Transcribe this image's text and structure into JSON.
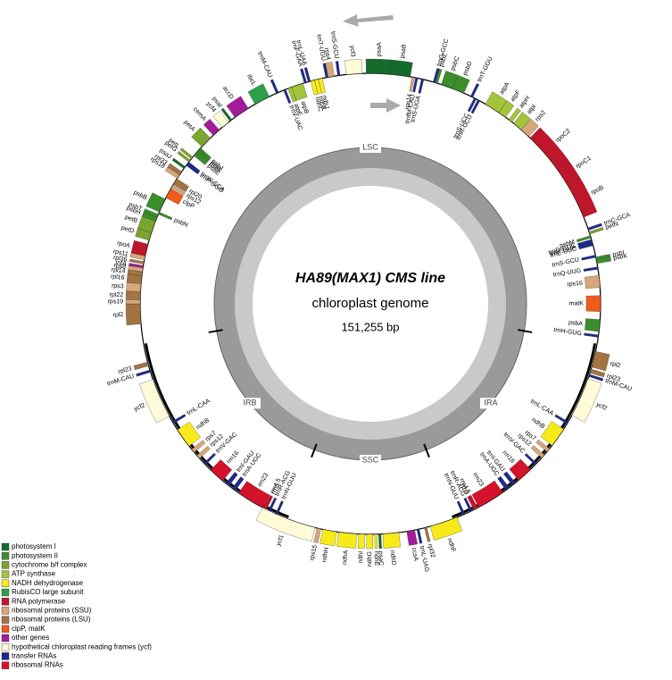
{
  "title": "HA89(MAX1) CMS line",
  "subtitle": "chloroplast genome",
  "genome_length": {
    "value": 151255,
    "label": "151,255 bp"
  },
  "regions": [
    {
      "name": "LSC",
      "start": 0,
      "end": 84030
    },
    {
      "name": "IRA",
      "start": 84030,
      "end": 108820
    },
    {
      "name": "SSC",
      "start": 108820,
      "end": 126470
    },
    {
      "name": "IRB",
      "start": 126470,
      "end": 151255
    }
  ],
  "legend": [
    {
      "label": "photosystem I",
      "color": "#156b2b"
    },
    {
      "label": "photosystem II",
      "color": "#3a8f2a"
    },
    {
      "label": "cytochrome b/f complex",
      "color": "#7ba52e"
    },
    {
      "label": "ATP synthase",
      "color": "#a4c43a"
    },
    {
      "label": "NADH dehydrogenase",
      "color": "#f7ea1a"
    },
    {
      "label": "RubisCO large subunit",
      "color": "#2aa04a"
    },
    {
      "label": "RNA polymerase",
      "color": "#c0162b"
    },
    {
      "label": "ribosomal proteins (SSU)",
      "color": "#d6a77a"
    },
    {
      "label": "ribosomal proteins (LSU)",
      "color": "#a27442"
    },
    {
      "label": "clpP, matK",
      "color": "#f05a1a"
    },
    {
      "label": "other genes",
      "color": "#a21c9a"
    },
    {
      "label": "hypothetical chloroplast reading frames (ycf)",
      "color": "#fffbd8"
    },
    {
      "label": "transfer RNAs",
      "color": "#1c2a8c"
    },
    {
      "label": "ribosomal RNAs",
      "color": "#d4122a"
    }
  ],
  "genes": [
    {
      "name": "rpl2",
      "start": 2100,
      "end": 4200,
      "strand": "-",
      "group": 8
    },
    {
      "name": "rps19",
      "start": 4200,
      "end": 4620,
      "strand": "-",
      "group": 7
    },
    {
      "name": "rpl22",
      "start": 4620,
      "end": 5460,
      "strand": "-",
      "group": 8
    },
    {
      "name": "rps3",
      "start": 5460,
      "end": 6300,
      "strand": "-",
      "group": 7
    },
    {
      "name": "rpl16",
      "start": 6300,
      "end": 7140,
      "strand": "-",
      "group": 8
    },
    {
      "name": "rpl14",
      "start": 7140,
      "end": 7560,
      "strand": "-",
      "group": 8
    },
    {
      "name": "rps8",
      "start": 7560,
      "end": 7980,
      "strand": "-",
      "group": 7
    },
    {
      "name": "infA",
      "start": 7980,
      "end": 8200,
      "strand": "-",
      "group": 10
    },
    {
      "name": "rpl36",
      "start": 8400,
      "end": 8600,
      "strand": "-",
      "group": 8
    },
    {
      "name": "rps11",
      "start": 8820,
      "end": 9240,
      "strand": "-",
      "group": 7
    },
    {
      "name": "rpoA",
      "start": 9240,
      "end": 10500,
      "strand": "-",
      "group": 6
    },
    {
      "name": "petD",
      "start": 10920,
      "end": 11760,
      "strand": "-",
      "group": 2
    },
    {
      "name": "petB",
      "start": 11760,
      "end": 13020,
      "strand": "-",
      "group": 2
    },
    {
      "name": "psbH",
      "start": 13020,
      "end": 13440,
      "strand": "-",
      "group": 1
    },
    {
      "name": "psbT",
      "start": 13440,
      "end": 13800,
      "strand": "-",
      "group": 1
    },
    {
      "name": "psbN",
      "start": 13860,
      "end": 14000,
      "strand": "+",
      "group": 1
    },
    {
      "name": "psbB",
      "start": 14070,
      "end": 15540,
      "strand": "-",
      "group": 1
    },
    {
      "name": "clpP",
      "start": 15700,
      "end": 16800,
      "strand": "+",
      "group": 9
    },
    {
      "name": "rps12",
      "start": 16900,
      "end": 17200,
      "strand": "+",
      "group": 7
    },
    {
      "name": "rpl20",
      "start": 17300,
      "end": 18000,
      "strand": "+",
      "group": 8
    },
    {
      "name": "rps18",
      "start": 18060,
      "end": 18480,
      "strand": "-",
      "group": 7
    },
    {
      "name": "rpl33",
      "start": 18480,
      "end": 18900,
      "strand": "-",
      "group": 8
    },
    {
      "name": "psaJ",
      "start": 19320,
      "end": 19500,
      "strand": "-",
      "group": 0
    },
    {
      "name": "trnP-UGG",
      "start": 19740,
      "end": 19900,
      "strand": "+",
      "group": 12
    },
    {
      "name": "trnW-CCA",
      "start": 19950,
      "end": 20100,
      "strand": "+",
      "group": 12
    },
    {
      "name": "petG",
      "start": 20160,
      "end": 20370,
      "strand": "-",
      "group": 2
    },
    {
      "name": "petL",
      "start": 20580,
      "end": 20790,
      "strand": "-",
      "group": 2
    },
    {
      "name": "psbE",
      "start": 21000,
      "end": 21420,
      "strand": "+",
      "group": 1
    },
    {
      "name": "psbF",
      "start": 21420,
      "end": 21630,
      "strand": "+",
      "group": 1
    },
    {
      "name": "psbL",
      "start": 21630,
      "end": 21840,
      "strand": "+",
      "group": 1
    },
    {
      "name": "psbJ",
      "start": 21840,
      "end": 22050,
      "strand": "+",
      "group": 1
    },
    {
      "name": "petA",
      "start": 22260,
      "end": 23520,
      "strand": "-",
      "group": 2
    },
    {
      "name": "cemA",
      "start": 23940,
      "end": 24780,
      "strand": "-",
      "group": 10
    },
    {
      "name": "ycf4",
      "start": 25200,
      "end": 26040,
      "strand": "-",
      "group": 11
    },
    {
      "name": "psaI",
      "start": 26250,
      "end": 26460,
      "strand": "-",
      "group": 0
    },
    {
      "name": "accD",
      "start": 26880,
      "end": 28560,
      "strand": "-",
      "group": 10
    },
    {
      "name": "rbcL",
      "start": 29400,
      "end": 31080,
      "strand": "-",
      "group": 5
    },
    {
      "name": "trnM-CAU",
      "start": 31920,
      "end": 32100,
      "strand": "-",
      "group": 12
    },
    {
      "name": "trnV-UAC",
      "start": 32760,
      "end": 32900,
      "strand": "+",
      "group": 12
    },
    {
      "name": "atpE",
      "start": 33180,
      "end": 33600,
      "strand": "+",
      "group": 3
    },
    {
      "name": "atpB",
      "start": 33600,
      "end": 34860,
      "strand": "+",
      "group": 3
    },
    {
      "name": "trnF-GAA",
      "start": 35070,
      "end": 35200,
      "strand": "-",
      "group": 12
    },
    {
      "name": "trnL-UAA",
      "start": 35490,
      "end": 35620,
      "strand": "-",
      "group": 12
    },
    {
      "name": "ndhC",
      "start": 35700,
      "end": 36120,
      "strand": "+",
      "group": 4
    },
    {
      "name": "ndhK",
      "start": 36120,
      "end": 36540,
      "strand": "+",
      "group": 4
    },
    {
      "name": "ndhJ",
      "start": 36540,
      "end": 36960,
      "strand": "+",
      "group": 4
    },
    {
      "name": "trnT-UGU",
      "start": 37380,
      "end": 37500,
      "strand": "-",
      "group": 12
    },
    {
      "name": "rps4",
      "start": 37590,
      "end": 38220,
      "strand": "-",
      "group": 7
    },
    {
      "name": "trnS-GCU",
      "start": 38640,
      "end": 38780,
      "strand": "-",
      "group": 12
    },
    {
      "name": "ycf3",
      "start": 39480,
      "end": 41160,
      "strand": "-",
      "group": 11
    },
    {
      "name": "psaA",
      "start": 41580,
      "end": 44100,
      "strand": "-",
      "group": 0
    },
    {
      "name": "psaB",
      "start": 44100,
      "end": 46200,
      "strand": "-",
      "group": 0
    },
    {
      "name": "rps14",
      "start": 46410,
      "end": 46620,
      "strand": "+",
      "group": 7
    },
    {
      "name": "trnfM-CAU",
      "start": 46830,
      "end": 46950,
      "strand": "+",
      "group": 12
    },
    {
      "name": "trnS-UGA",
      "start": 47460,
      "end": 47600,
      "strand": "+",
      "group": 12
    },
    {
      "name": "trnG-GCC",
      "start": 48720,
      "end": 48850,
      "strand": "-",
      "group": 12
    },
    {
      "name": "psbZ",
      "start": 48930,
      "end": 49140,
      "strand": "-",
      "group": 1
    },
    {
      "name": "psbC",
      "start": 49560,
      "end": 50820,
      "strand": "-",
      "group": 1
    },
    {
      "name": "psbD",
      "start": 50820,
      "end": 52080,
      "strand": "-",
      "group": 1
    },
    {
      "name": "trnT-GGU",
      "start": 52920,
      "end": 53050,
      "strand": "-",
      "group": 12
    },
    {
      "name": "trnS-UCC",
      "start": 53340,
      "end": 53460,
      "strand": "+",
      "group": 12
    },
    {
      "name": "trnR-UCU",
      "start": 53760,
      "end": 53880,
      "strand": "+",
      "group": 12
    },
    {
      "name": "atpA",
      "start": 54600,
      "end": 56280,
      "strand": "-",
      "group": 3
    },
    {
      "name": "atpF",
      "start": 56280,
      "end": 57120,
      "strand": "-",
      "group": 3
    },
    {
      "name": "atpH",
      "start": 57540,
      "end": 57960,
      "strand": "-",
      "group": 3
    },
    {
      "name": "atpI",
      "start": 58170,
      "end": 59220,
      "strand": "-",
      "group": 3
    },
    {
      "name": "rps2",
      "start": 59220,
      "end": 60270,
      "strand": "-",
      "group": 7
    },
    {
      "name": "rpoC2",
      "start": 60480,
      "end": 64680,
      "strand": "-",
      "group": 6
    },
    {
      "name": "rpoC1",
      "start": 64680,
      "end": 66780,
      "strand": "-",
      "group": 6
    },
    {
      "name": "rpoB",
      "start": 66780,
      "end": 70560,
      "strand": "-",
      "group": 6
    },
    {
      "name": "trnC-GCA",
      "start": 71820,
      "end": 71950,
      "strand": "-",
      "group": 12
    },
    {
      "name": "petN",
      "start": 72240,
      "end": 72370,
      "strand": "-",
      "group": 2
    },
    {
      "name": "psbM",
      "start": 72660,
      "end": 72790,
      "strand": "+",
      "group": 1
    },
    {
      "name": "trnD-GUC",
      "start": 73080,
      "end": 73200,
      "strand": "+",
      "group": 12
    },
    {
      "name": "trnY-GUA",
      "start": 73290,
      "end": 73400,
      "strand": "+",
      "group": 12
    },
    {
      "name": "trnE-UUC",
      "start": 73500,
      "end": 73620,
      "strand": "+",
      "group": 12
    },
    {
      "name": "trnS-GCU",
      "start": 74760,
      "end": 74880,
      "strand": "+",
      "group": 12
    },
    {
      "name": "psbI",
      "start": 74970,
      "end": 75100,
      "strand": "-",
      "group": 1
    },
    {
      "name": "psbK",
      "start": 75180,
      "end": 75600,
      "strand": "-",
      "group": 1
    },
    {
      "name": "trnQ-UUG",
      "start": 76020,
      "end": 76140,
      "strand": "+",
      "group": 12
    },
    {
      "name": "rps16",
      "start": 76860,
      "end": 78120,
      "strand": "+",
      "group": 7
    },
    {
      "name": "matK",
      "start": 78960,
      "end": 80640,
      "strand": "+",
      "group": 9
    },
    {
      "name": "psbA",
      "start": 81480,
      "end": 82740,
      "strand": "+",
      "group": 1
    },
    {
      "name": "trnH-GUG",
      "start": 83160,
      "end": 83280,
      "strand": "+",
      "group": 12
    },
    {
      "name": "rpl2",
      "start": 84840,
      "end": 86520,
      "strand": "-",
      "group": 8
    },
    {
      "name": "rpl23",
      "start": 86730,
      "end": 87150,
      "strand": "-",
      "group": 8
    },
    {
      "name": "trnM-CAU",
      "start": 87360,
      "end": 87500,
      "strand": "-",
      "group": 12
    },
    {
      "name": "ycf2",
      "start": 87780,
      "end": 91980,
      "strand": "-",
      "group": 11
    },
    {
      "name": "trnL-CAA",
      "start": 92820,
      "end": 92950,
      "strand": "+",
      "group": 12
    },
    {
      "name": "ndhB",
      "start": 93660,
      "end": 95760,
      "strand": "+",
      "group": 4
    },
    {
      "name": "rps7",
      "start": 96180,
      "end": 96600,
      "strand": "+",
      "group": 7
    },
    {
      "name": "rps12",
      "start": 97020,
      "end": 97440,
      "strand": "+",
      "group": 7
    },
    {
      "name": "trnV-GAC",
      "start": 98280,
      "end": 98400,
      "strand": "+",
      "group": 12
    },
    {
      "name": "rrn16",
      "start": 99120,
      "end": 100800,
      "strand": "+",
      "group": 13
    },
    {
      "name": "trnI-GAU",
      "start": 101220,
      "end": 101640,
      "strand": "+",
      "group": 12
    },
    {
      "name": "trnA-UGC",
      "start": 102060,
      "end": 102480,
      "strand": "+",
      "group": 12
    },
    {
      "name": "rrn23",
      "start": 102900,
      "end": 105840,
      "strand": "+",
      "group": 13
    },
    {
      "name": "rrn4.5",
      "start": 106050,
      "end": 106150,
      "strand": "+",
      "group": 13
    },
    {
      "name": "rrn5",
      "start": 106260,
      "end": 106350,
      "strand": "+",
      "group": 13
    },
    {
      "name": "trnR-ACG",
      "start": 106680,
      "end": 106800,
      "strand": "+",
      "group": 12
    },
    {
      "name": "trnN-GUU",
      "start": 107520,
      "end": 107650,
      "strand": "+",
      "group": 12
    },
    {
      "name": "ndhF",
      "start": 108360,
      "end": 111300,
      "strand": "-",
      "group": 4
    },
    {
      "name": "rpl32",
      "start": 111720,
      "end": 111900,
      "strand": "-",
      "group": 8
    },
    {
      "name": "trnL-UAG",
      "start": 112560,
      "end": 112680,
      "strand": "-",
      "group": 12
    },
    {
      "name": "ccsA",
      "start": 112980,
      "end": 113820,
      "strand": "-",
      "group": 10
    },
    {
      "name": "ndhD",
      "start": 114660,
      "end": 116340,
      "strand": "-",
      "group": 4
    },
    {
      "name": "psaC",
      "start": 116550,
      "end": 116760,
      "strand": "-",
      "group": 0
    },
    {
      "name": "ndhE",
      "start": 116970,
      "end": 117180,
      "strand": "-",
      "group": 4
    },
    {
      "name": "ndhG",
      "start": 117390,
      "end": 118020,
      "strand": "-",
      "group": 4
    },
    {
      "name": "ndhI",
      "start": 118230,
      "end": 118860,
      "strand": "-",
      "group": 4
    },
    {
      "name": "ndhA",
      "start": 119070,
      "end": 120960,
      "strand": "-",
      "group": 4
    },
    {
      "name": "ndhH",
      "start": 121170,
      "end": 122640,
      "strand": "-",
      "group": 4
    },
    {
      "name": "rps15",
      "start": 122850,
      "end": 123270,
      "strand": "-",
      "group": 7
    },
    {
      "name": "ycf1",
      "start": 123480,
      "end": 129360,
      "strand": "-",
      "group": 11
    },
    {
      "name": "trnN-GUU",
      "start": 127680,
      "end": 127800,
      "strand": "+",
      "group": 12
    },
    {
      "name": "trnR-ACG",
      "start": 128520,
      "end": 128640,
      "strand": "+",
      "group": 12
    },
    {
      "name": "rrn5",
      "start": 129000,
      "end": 129100,
      "strand": "+",
      "group": 13
    },
    {
      "name": "rrn4.5",
      "start": 129150,
      "end": 129250,
      "strand": "+",
      "group": 13
    },
    {
      "name": "rrn23",
      "start": 129360,
      "end": 132300,
      "strand": "+",
      "group": 13
    },
    {
      "name": "trnA-UGC",
      "start": 132720,
      "end": 133140,
      "strand": "+",
      "group": 12
    },
    {
      "name": "trnI-GAU",
      "start": 133560,
      "end": 133980,
      "strand": "+",
      "group": 12
    },
    {
      "name": "rrn16",
      "start": 134400,
      "end": 136080,
      "strand": "+",
      "group": 13
    },
    {
      "name": "trnV-GAC",
      "start": 136920,
      "end": 137040,
      "strand": "+",
      "group": 12
    },
    {
      "name": "rps12",
      "start": 137760,
      "end": 138180,
      "strand": "+",
      "group": 7
    },
    {
      "name": "rps7",
      "start": 138600,
      "end": 139020,
      "strand": "+",
      "group": 7
    },
    {
      "name": "ndhB",
      "start": 139440,
      "end": 141540,
      "strand": "+",
      "group": 4
    },
    {
      "name": "trnL-CAA",
      "start": 142380,
      "end": 142500,
      "strand": "+",
      "group": 12
    },
    {
      "name": "ycf2",
      "start": 143220,
      "end": 147420,
      "strand": "-",
      "group": 11
    },
    {
      "name": "trnM-CAU",
      "start": 148260,
      "end": 148400,
      "strand": "-",
      "group": 12
    },
    {
      "name": "rpl23",
      "start": 148890,
      "end": 149310,
      "strand": "-",
      "group": 8
    }
  ]
}
